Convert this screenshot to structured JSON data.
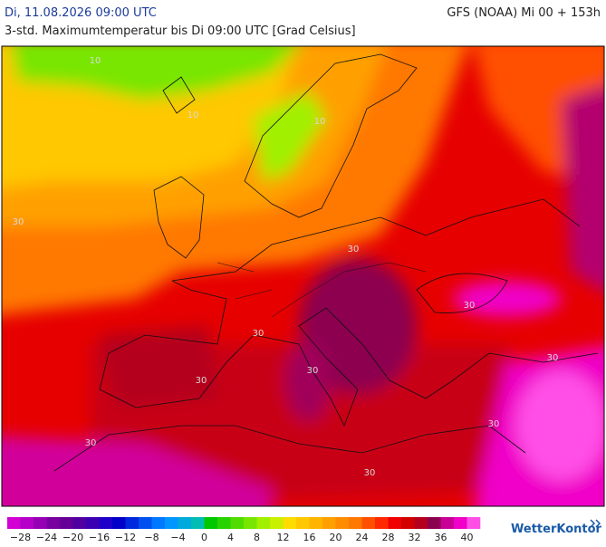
{
  "header": {
    "date": "Di, 11.08.2026 09:00 UTC",
    "model": "GFS (NOAA) Mi 00 + 153h",
    "subtitle": "3-std. Maximumtemperatur bis Di 09:00 UTC [Grad Celsius]"
  },
  "map": {
    "contour_labels": [
      "10",
      "10",
      "10",
      "30",
      "30",
      "30",
      "30",
      "30",
      "30",
      "30",
      "30",
      "30",
      "30"
    ]
  },
  "legend": {
    "lim": [
      -30,
      42
    ],
    "colors": [
      "#d200d2",
      "#b400c8",
      "#9600b4",
      "#7800a0",
      "#640096",
      "#5000a0",
      "#3c00b4",
      "#1e00c8",
      "#0000c8",
      "#0028dc",
      "#0050f0",
      "#0078ff",
      "#0096ff",
      "#00aadc",
      "#00beb4",
      "#00c800",
      "#28d200",
      "#50dc00",
      "#78e600",
      "#a0f000",
      "#c8f000",
      "#ffdc00",
      "#ffc800",
      "#ffb400",
      "#ffa000",
      "#ff8c00",
      "#ff7800",
      "#ff5000",
      "#ff2800",
      "#f00000",
      "#d20000",
      "#b4001e",
      "#8c0050",
      "#c80096",
      "#f000c8",
      "#ff50e6"
    ],
    "ticks": [
      {
        "value": -28,
        "label": "−28"
      },
      {
        "value": -24,
        "label": "−24"
      },
      {
        "value": -20,
        "label": "−20"
      },
      {
        "value": -16,
        "label": "−16"
      },
      {
        "value": -12,
        "label": "−12"
      },
      {
        "value": -8,
        "label": "−8"
      },
      {
        "value": -4,
        "label": "−4"
      },
      0,
      4,
      8,
      12,
      16,
      20,
      24,
      28,
      32,
      36,
      40
    ]
  },
  "brand": "WetterKontor"
}
